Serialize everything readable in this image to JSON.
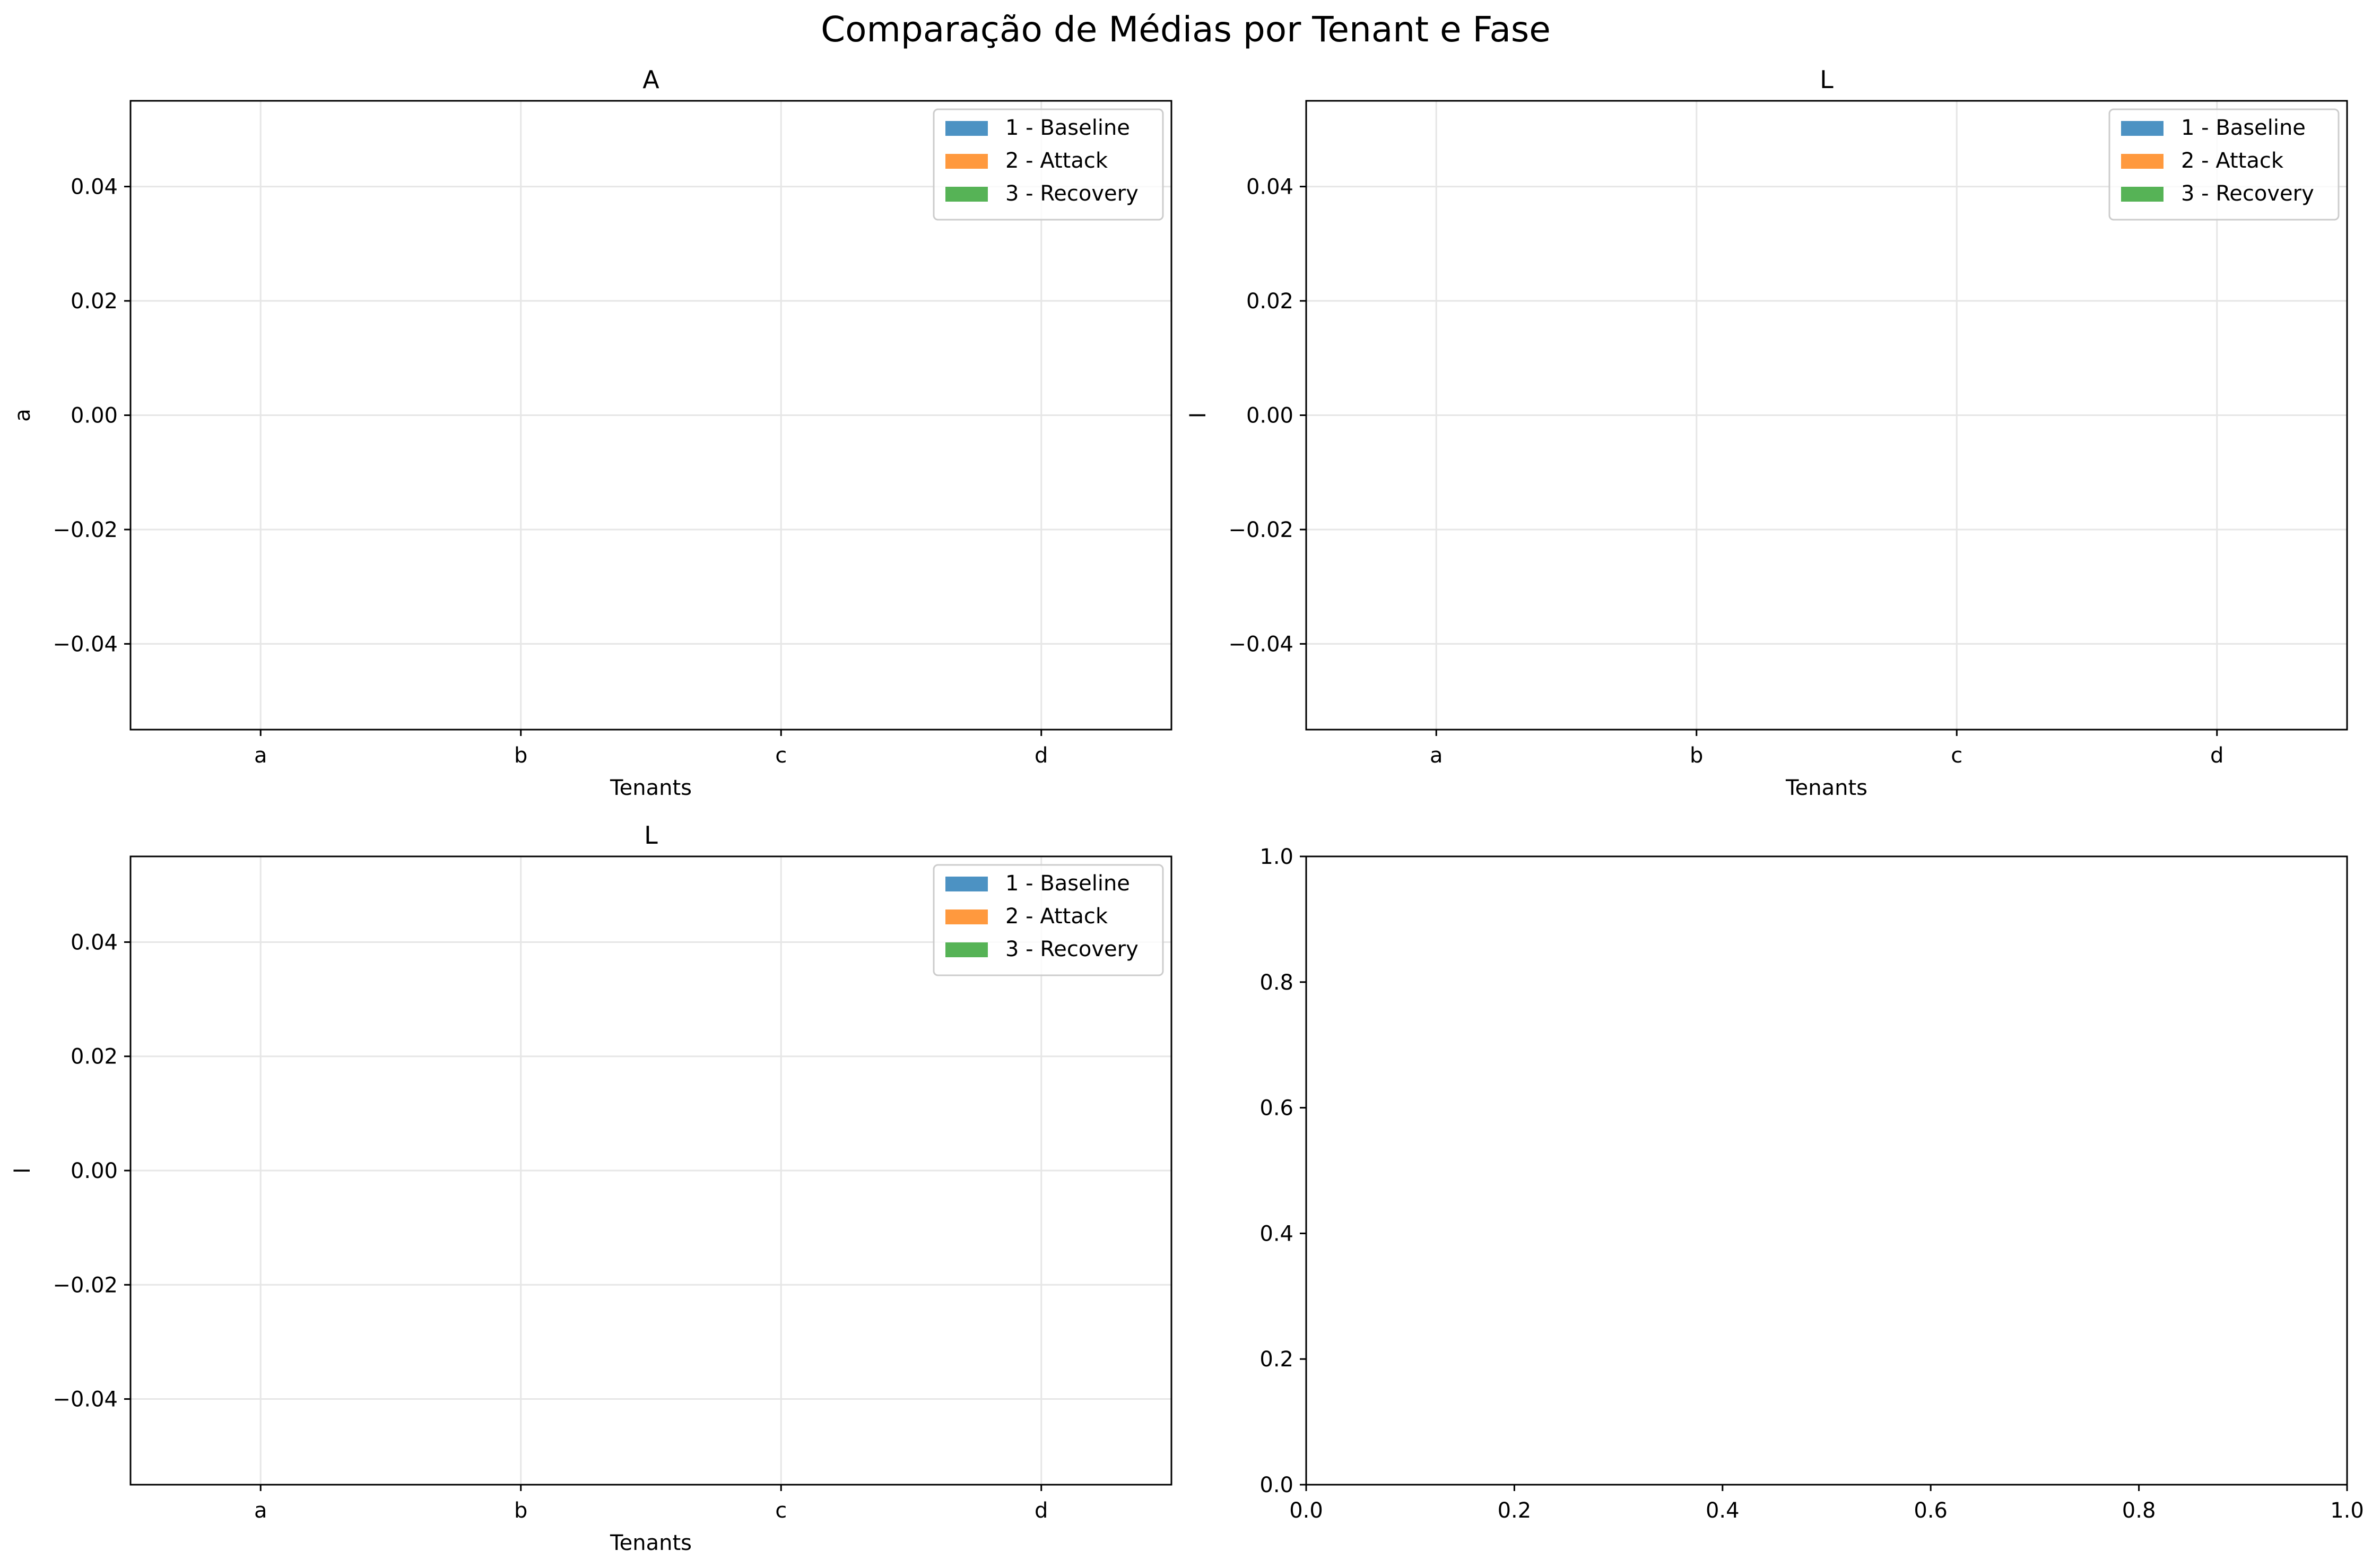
{
  "figure": {
    "suptitle": "Comparação de Médias por Tenant e Fase"
  },
  "colors": {
    "baseline": "#1f77b4",
    "attack": "#ff7f0e",
    "recovery": "#2ca02c",
    "grid": "#e6e6e6",
    "axis": "#000000"
  },
  "chart_data": [
    {
      "type": "bar",
      "title": "A",
      "xlabel": "Tenants",
      "ylabel": "a",
      "categories": [
        "a",
        "b",
        "c",
        "d"
      ],
      "series": [
        {
          "name": "1 - Baseline",
          "values": [
            null,
            null,
            null,
            null
          ]
        },
        {
          "name": "2 - Attack",
          "values": [
            null,
            null,
            null,
            null
          ]
        },
        {
          "name": "3 - Recovery",
          "values": [
            null,
            null,
            null,
            null
          ]
        }
      ],
      "ylim": [
        -0.055,
        0.055
      ],
      "yticks": [
        "−0.04",
        "−0.02",
        "0.00",
        "0.02",
        "0.04"
      ],
      "ytick_values": [
        -0.04,
        -0.02,
        0.0,
        0.02,
        0.04
      ],
      "grid": true,
      "legend": "top-right"
    },
    {
      "type": "bar",
      "title": "L",
      "xlabel": "Tenants",
      "ylabel": "l",
      "categories": [
        "a",
        "b",
        "c",
        "d"
      ],
      "series": [
        {
          "name": "1 - Baseline",
          "values": [
            null,
            null,
            null,
            null
          ]
        },
        {
          "name": "2 - Attack",
          "values": [
            null,
            null,
            null,
            null
          ]
        },
        {
          "name": "3 - Recovery",
          "values": [
            null,
            null,
            null,
            null
          ]
        }
      ],
      "ylim": [
        -0.055,
        0.055
      ],
      "yticks": [
        "−0.04",
        "−0.02",
        "0.00",
        "0.02",
        "0.04"
      ],
      "ytick_values": [
        -0.04,
        -0.02,
        0.0,
        0.02,
        0.04
      ],
      "grid": true,
      "legend": "top-right"
    },
    {
      "type": "bar",
      "title": "L",
      "xlabel": "Tenants",
      "ylabel": "l",
      "categories": [
        "a",
        "b",
        "c",
        "d"
      ],
      "series": [
        {
          "name": "1 - Baseline",
          "values": [
            null,
            null,
            null,
            null
          ]
        },
        {
          "name": "2 - Attack",
          "values": [
            null,
            null,
            null,
            null
          ]
        },
        {
          "name": "3 - Recovery",
          "values": [
            null,
            null,
            null,
            null
          ]
        }
      ],
      "ylim": [
        -0.055,
        0.055
      ],
      "yticks": [
        "−0.04",
        "−0.02",
        "0.00",
        "0.02",
        "0.04"
      ],
      "ytick_values": [
        -0.04,
        -0.02,
        0.0,
        0.02,
        0.04
      ],
      "grid": true,
      "legend": "top-right"
    },
    {
      "type": "empty",
      "title": "",
      "xlabel": "",
      "ylabel": "",
      "xlim": [
        0,
        1
      ],
      "ylim": [
        0,
        1
      ],
      "xticks": [
        "0.0",
        "0.2",
        "0.4",
        "0.6",
        "0.8",
        "1.0"
      ],
      "xtick_values": [
        0,
        0.2,
        0.4,
        0.6,
        0.8,
        1.0
      ],
      "yticks": [
        "0.0",
        "0.2",
        "0.4",
        "0.6",
        "0.8",
        "1.0"
      ],
      "ytick_values": [
        0,
        0.2,
        0.4,
        0.6,
        0.8,
        1.0
      ],
      "grid": false
    }
  ]
}
